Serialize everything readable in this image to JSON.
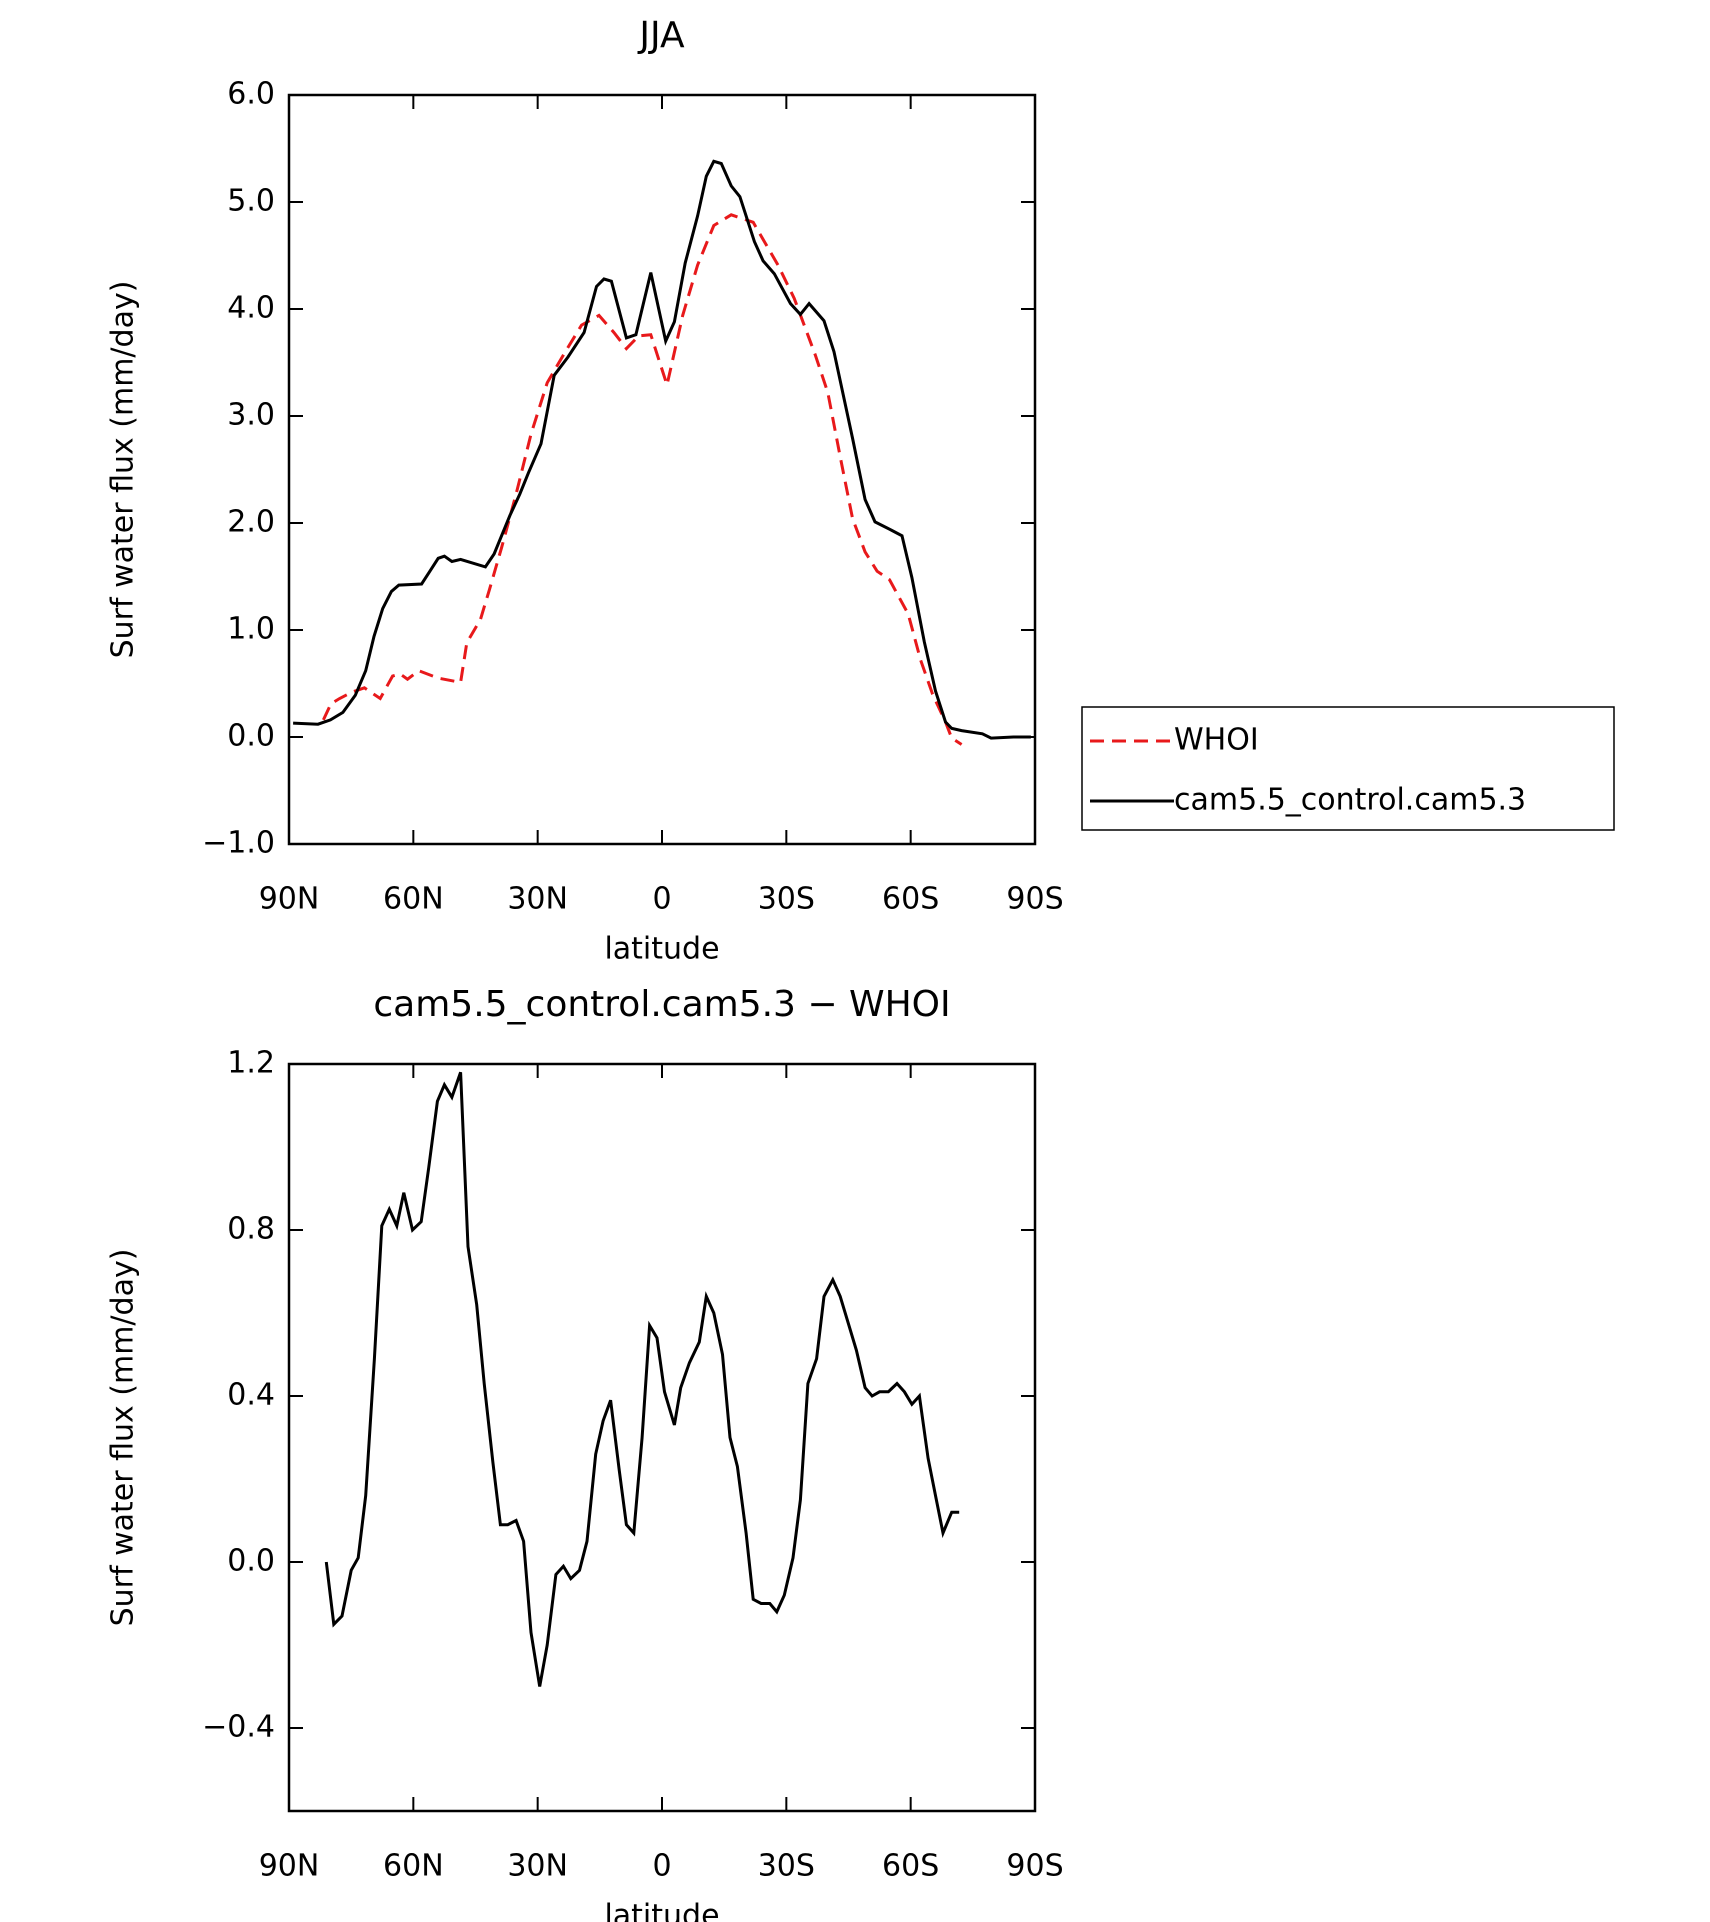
{
  "chart_data": [
    {
      "type": "line",
      "title": "JJA",
      "xlabel": "latitude",
      "ylabel": "Surf water flux (mm/day)",
      "xlim": [
        90,
        -90
      ],
      "xticks": [
        {
          "value": 90,
          "label": "90N"
        },
        {
          "value": 60,
          "label": "60N"
        },
        {
          "value": 30,
          "label": "30N"
        },
        0,
        {
          "value": -30,
          "label": "30S"
        },
        {
          "value": -60,
          "label": "60S"
        },
        {
          "value": -90,
          "label": "90S"
        }
      ],
      "ylim": [
        -1,
        6
      ],
      "yticks": [
        {
          "value": -1,
          "label": "−1.0"
        },
        {
          "value": 0,
          "label": "0.0"
        },
        {
          "value": 1,
          "label": "1.0"
        },
        {
          "value": 2,
          "label": "2.0"
        },
        {
          "value": 3,
          "label": "3.0"
        },
        {
          "value": 4,
          "label": "4.0"
        },
        {
          "value": 5,
          "label": "5.0"
        },
        {
          "value": 6,
          "label": "6.0"
        }
      ],
      "legend": "right",
      "series": [
        {
          "name": "WHOI",
          "color": "#e8191b",
          "dash": true,
          "x": [
            81.7,
            79.9,
            77.8,
            74.8,
            71.8,
            68,
            65,
            63.2,
            61.4,
            58.7,
            54,
            48.6,
            47.1,
            43.8,
            41.7,
            38.7,
            35.2,
            31.6,
            27.7,
            23.5,
            19.4,
            15.2,
            11.6,
            8.6,
            5.6,
            2.7,
            -1.2,
            -5,
            -8.6,
            -12.5,
            -16.7,
            -22,
            -25,
            -28,
            -31.9,
            -37,
            -40,
            -43,
            -46,
            -49,
            -51.9,
            -54.9,
            -59.4,
            -62.4,
            -65.3,
            -68.4,
            -69.9,
            -72.3
          ],
          "values": [
            0.16,
            0.31,
            0.36,
            0.42,
            0.46,
            0.36,
            0.57,
            0.59,
            0.54,
            0.62,
            0.55,
            0.51,
            0.88,
            1.1,
            1.37,
            1.77,
            2.27,
            2.83,
            3.31,
            3.59,
            3.85,
            3.94,
            3.78,
            3.63,
            3.75,
            3.76,
            3.29,
            3.94,
            4.41,
            4.78,
            4.88,
            4.81,
            4.61,
            4.41,
            4.1,
            3.57,
            3.22,
            2.62,
            2.04,
            1.73,
            1.55,
            1.47,
            1.15,
            0.72,
            0.4,
            0.14,
            -0.01,
            -0.07
          ]
        },
        {
          "name": "cam5.5_control.cam5.3",
          "color": "#000000",
          "dash": false,
          "x": [
            89,
            83,
            80,
            77,
            74,
            71.5,
            69.5,
            67.4,
            65.3,
            63.5,
            58,
            56,
            54,
            52.5,
            50.7,
            48.6,
            42.6,
            40.5,
            36.7,
            34.3,
            32.2,
            29.2,
            26,
            22.7,
            18.8,
            15.8,
            14,
            12.2,
            8.6,
            6.3,
            2.7,
            -0.9,
            -3,
            -5.6,
            -8.6,
            -10.7,
            -12.5,
            -14.3,
            -16.7,
            -18.8,
            -22.3,
            -24.4,
            -27.1,
            -31,
            -33.4,
            -35.5,
            -39.1,
            -41.5,
            -46,
            -49,
            -51.4,
            -55.5,
            -57.9,
            -60.3,
            -63.3,
            -66,
            -68.4,
            -69.9,
            -72.3,
            -77.3,
            -79.4,
            -84.8,
            -89
          ],
          "values": [
            0.13,
            0.12,
            0.16,
            0.23,
            0.39,
            0.62,
            0.94,
            1.2,
            1.36,
            1.42,
            1.43,
            1.55,
            1.67,
            1.69,
            1.64,
            1.66,
            1.59,
            1.71,
            2.07,
            2.27,
            2.47,
            2.74,
            3.38,
            3.55,
            3.78,
            4.21,
            4.28,
            4.26,
            3.73,
            3.76,
            4.34,
            3.7,
            3.88,
            4.43,
            4.87,
            5.24,
            5.38,
            5.36,
            5.15,
            5.05,
            4.63,
            4.45,
            4.33,
            4.05,
            3.95,
            4.05,
            3.89,
            3.6,
            2.79,
            2.22,
            2.01,
            1.93,
            1.88,
            1.49,
            0.89,
            0.43,
            0.14,
            0.08,
            0.06,
            0.03,
            -0.01,
            0,
            0
          ]
        }
      ]
    },
    {
      "type": "line",
      "title": "cam5.5_control.cam5.3 − WHOI",
      "xlabel": "latitude",
      "ylabel": "Surf water flux (mm/day)",
      "xlim": [
        90,
        -90
      ],
      "xticks": [
        {
          "value": 90,
          "label": "90N"
        },
        {
          "value": 60,
          "label": "60N"
        },
        {
          "value": 30,
          "label": "30N"
        },
        0,
        {
          "value": -30,
          "label": "30S"
        },
        {
          "value": -60,
          "label": "60S"
        },
        {
          "value": -90,
          "label": "90S"
        }
      ],
      "ylim": [
        -0.6,
        1.2
      ],
      "yticks": [
        {
          "value": -0.4,
          "label": "−0.4"
        },
        {
          "value": 0,
          "label": "0.0"
        },
        0.4,
        0.8,
        1.2
      ],
      "color": "#000000",
      "x": [
        81,
        79.2,
        77.2,
        75,
        73.3,
        71.5,
        69.4,
        67.6,
        65.8,
        64,
        62.3,
        60.2,
        58.1,
        56.3,
        54.2,
        52.5,
        50.7,
        48.6,
        46.8,
        44.7,
        42.9,
        40.8,
        39,
        37.2,
        35.2,
        33.4,
        31.6,
        29.5,
        27.7,
        25.6,
        23.8,
        22,
        19.9,
        18.1,
        16,
        14.2,
        12.4,
        10.3,
        8.6,
        6.8,
        4.8,
        3,
        1.2,
        -0.6,
        -3,
        -4.5,
        -6.6,
        -9,
        -10.7,
        -12.5,
        -14.6,
        -16.4,
        -18.2,
        -20.3,
        -22,
        -23.9,
        -26,
        -27.7,
        -29.5,
        -31.6,
        -33.4,
        -35.2,
        -37.3,
        -39.1,
        -41.2,
        -43,
        -44.8,
        -46.9,
        -49,
        -50.7,
        -52.5,
        -54.6,
        -56.7,
        -58.5,
        -60.3,
        -62.1,
        -64.2,
        -66,
        -67.8,
        -69.9,
        -71.7
      ],
      "values": [
        0,
        -0.15,
        -0.13,
        -0.02,
        0.01,
        0.16,
        0.49,
        0.81,
        0.85,
        0.81,
        0.89,
        0.8,
        0.82,
        0.95,
        1.11,
        1.15,
        1.12,
        1.18,
        0.76,
        0.62,
        0.43,
        0.24,
        0.09,
        0.09,
        0.1,
        0.05,
        -0.17,
        -0.3,
        -0.2,
        -0.03,
        -0.01,
        -0.04,
        -0.02,
        0.05,
        0.26,
        0.34,
        0.39,
        0.22,
        0.09,
        0.07,
        0.3,
        0.57,
        0.54,
        0.41,
        0.33,
        0.42,
        0.48,
        0.53,
        0.64,
        0.6,
        0.5,
        0.3,
        0.23,
        0.07,
        -0.09,
        -0.1,
        -0.1,
        -0.12,
        -0.08,
        0.01,
        0.15,
        0.43,
        0.49,
        0.64,
        0.68,
        0.64,
        0.58,
        0.51,
        0.42,
        0.4,
        0.41,
        0.41,
        0.43,
        0.41,
        0.38,
        0.4,
        0.25,
        0.16,
        0.07,
        0.12,
        0.12
      ]
    }
  ]
}
